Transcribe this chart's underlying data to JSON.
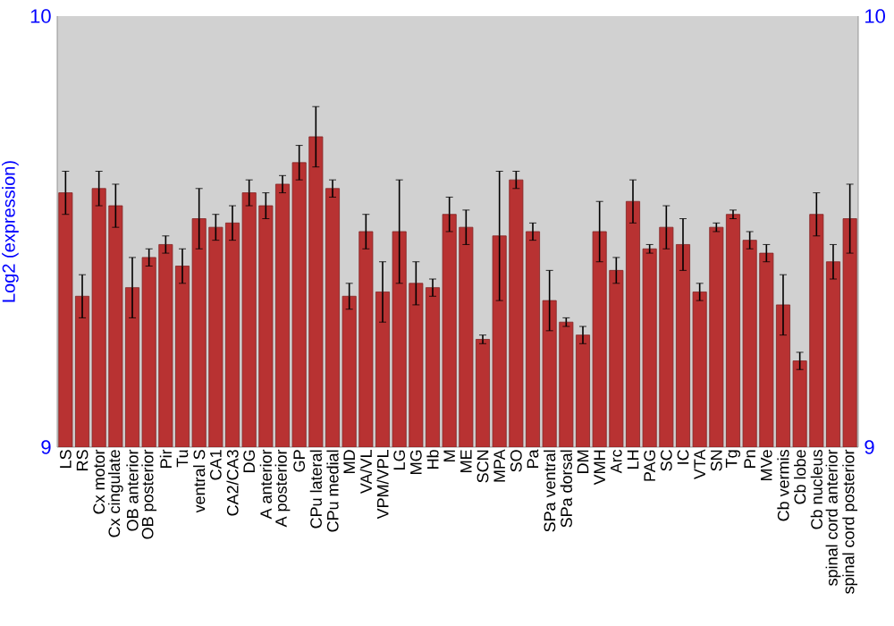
{
  "chart_data": {
    "type": "bar",
    "ylabel": "Log2 (expression)",
    "categories": [
      "LS",
      "RS",
      "Cx motor",
      "Cx cingulate",
      "OB anterior",
      "OB posterior",
      "Pir",
      "Tu",
      "ventral S",
      "CA1",
      "CA2/CA3",
      "DG",
      "A anterior",
      "A posterior",
      "GP",
      "CPu lateral",
      "CPu medial",
      "MD",
      "VA/VL",
      "VPM/VPL",
      "LG",
      "MG",
      "Hb",
      "M",
      "ME",
      "SCN",
      "MPA",
      "SO",
      "Pa",
      "SPa ventral",
      "SPa dorsal",
      "DM",
      "VMH",
      "Arc",
      "LH",
      "PAG",
      "SC",
      "IC",
      "VTA",
      "SN",
      "Tg",
      "Pn",
      "MVe",
      "Cb vermis",
      "Cb lobe",
      "Cb nucleus",
      "spinal cord anterior",
      "spinal cord posterior"
    ],
    "values": [
      9.59,
      9.35,
      9.6,
      9.56,
      9.37,
      9.44,
      9.47,
      9.42,
      9.53,
      9.51,
      9.52,
      9.59,
      9.56,
      9.61,
      9.66,
      9.72,
      9.6,
      9.35,
      9.5,
      9.36,
      9.5,
      9.38,
      9.37,
      9.54,
      9.51,
      9.25,
      9.49,
      9.62,
      9.5,
      9.34,
      9.29,
      9.26,
      9.5,
      9.41,
      9.57,
      9.46,
      9.51,
      9.47,
      9.36,
      9.51,
      9.54,
      9.48,
      9.45,
      9.33,
      9.2,
      9.54,
      9.43,
      9.53
    ],
    "errors": [
      0.05,
      0.05,
      0.04,
      0.05,
      0.07,
      0.02,
      0.02,
      0.04,
      0.07,
      0.03,
      0.04,
      0.03,
      0.03,
      0.02,
      0.04,
      0.07,
      0.02,
      0.03,
      0.04,
      0.07,
      0.12,
      0.05,
      0.02,
      0.04,
      0.04,
      0.01,
      0.15,
      0.02,
      0.02,
      0.07,
      0.01,
      0.02,
      0.07,
      0.03,
      0.05,
      0.01,
      0.05,
      0.06,
      0.02,
      0.01,
      0.01,
      0.02,
      0.02,
      0.07,
      0.02,
      0.05,
      0.04,
      0.08
    ],
    "color": "#b83232",
    "ylim": [
      9,
      10
    ],
    "yticks": [
      9,
      10
    ],
    "y2lim": [
      9,
      10
    ],
    "y2ticks": [
      9,
      10
    ]
  }
}
